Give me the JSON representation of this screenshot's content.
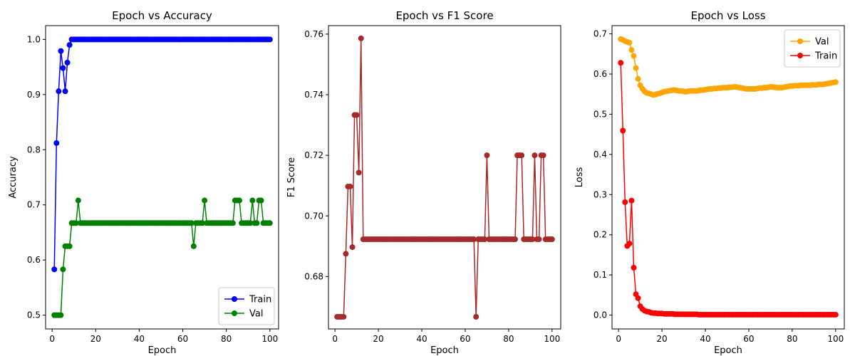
{
  "chart_data": [
    {
      "type": "line",
      "title": "Epoch vs Accuracy",
      "xlabel": "Epoch",
      "ylabel": "Accuracy",
      "xlim": [
        -3,
        104
      ],
      "ylim": [
        0.475,
        1.025
      ],
      "xticks": [
        0,
        20,
        40,
        60,
        80,
        100
      ],
      "yticks": [
        0.5,
        0.6,
        0.7,
        0.8,
        0.9,
        1.0
      ],
      "ytick_labels": [
        "0.5",
        "0.6",
        "0.7",
        "0.8",
        "0.9",
        "1.0"
      ],
      "legend_position": "lower-right",
      "series": [
        {
          "name": "Train",
          "color": "#0000ff",
          "values": [
            0.583,
            0.812,
            0.906,
            0.979,
            0.948,
            0.906,
            0.958,
            0.99,
            1.0,
            1.0,
            1.0,
            1.0,
            1.0,
            1.0,
            1.0,
            1.0,
            1.0,
            1.0,
            1.0,
            1.0,
            1.0,
            1.0,
            1.0,
            1.0,
            1.0,
            1.0,
            1.0,
            1.0,
            1.0,
            1.0,
            1.0,
            1.0,
            1.0,
            1.0,
            1.0,
            1.0,
            1.0,
            1.0,
            1.0,
            1.0,
            1.0,
            1.0,
            1.0,
            1.0,
            1.0,
            1.0,
            1.0,
            1.0,
            1.0,
            1.0,
            1.0,
            1.0,
            1.0,
            1.0,
            1.0,
            1.0,
            1.0,
            1.0,
            1.0,
            1.0,
            1.0,
            1.0,
            1.0,
            1.0,
            1.0,
            1.0,
            1.0,
            1.0,
            1.0,
            1.0,
            1.0,
            1.0,
            1.0,
            1.0,
            1.0,
            1.0,
            1.0,
            1.0,
            1.0,
            1.0,
            1.0,
            1.0,
            1.0,
            1.0,
            1.0,
            1.0,
            1.0,
            1.0,
            1.0,
            1.0,
            1.0,
            1.0,
            1.0,
            1.0,
            1.0,
            1.0,
            1.0,
            1.0,
            1.0,
            1.0
          ]
        },
        {
          "name": "Val",
          "color": "#008000",
          "values": [
            0.5,
            0.5,
            0.5,
            0.5,
            0.583,
            0.625,
            0.625,
            0.625,
            0.667,
            0.667,
            0.667,
            0.708,
            0.667,
            0.667,
            0.667,
            0.667,
            0.667,
            0.667,
            0.667,
            0.667,
            0.667,
            0.667,
            0.667,
            0.667,
            0.667,
            0.667,
            0.667,
            0.667,
            0.667,
            0.667,
            0.667,
            0.667,
            0.667,
            0.667,
            0.667,
            0.667,
            0.667,
            0.667,
            0.667,
            0.667,
            0.667,
            0.667,
            0.667,
            0.667,
            0.667,
            0.667,
            0.667,
            0.667,
            0.667,
            0.667,
            0.667,
            0.667,
            0.667,
            0.667,
            0.667,
            0.667,
            0.667,
            0.667,
            0.667,
            0.667,
            0.667,
            0.667,
            0.667,
            0.667,
            0.625,
            0.667,
            0.667,
            0.667,
            0.667,
            0.708,
            0.667,
            0.667,
            0.667,
            0.667,
            0.667,
            0.667,
            0.667,
            0.667,
            0.667,
            0.667,
            0.667,
            0.667,
            0.667,
            0.708,
            0.708,
            0.708,
            0.667,
            0.667,
            0.667,
            0.667,
            0.667,
            0.708,
            0.667,
            0.667,
            0.708,
            0.708,
            0.667,
            0.667,
            0.667,
            0.667
          ]
        }
      ]
    },
    {
      "type": "line",
      "title": "Epoch vs F1 Score",
      "xlabel": "Epoch",
      "ylabel": "F1 Score",
      "xlim": [
        -3,
        104
      ],
      "ylim": [
        0.6627,
        0.7628
      ],
      "xticks": [
        0,
        20,
        40,
        60,
        80,
        100
      ],
      "yticks": [
        0.68,
        0.7,
        0.72,
        0.74,
        0.76
      ],
      "ytick_labels": [
        "0.68",
        "0.70",
        "0.72",
        "0.74",
        "0.76"
      ],
      "series": [
        {
          "name": "",
          "color": "#a52a2a",
          "values": [
            0.6667,
            0.6667,
            0.6667,
            0.6667,
            0.6875,
            0.7097,
            0.7097,
            0.6897,
            0.7333,
            0.7333,
            0.7143,
            0.7586,
            0.6923,
            0.6923,
            0.6923,
            0.6923,
            0.6923,
            0.6923,
            0.6923,
            0.6923,
            0.6923,
            0.6923,
            0.6923,
            0.6923,
            0.6923,
            0.6923,
            0.6923,
            0.6923,
            0.6923,
            0.6923,
            0.6923,
            0.6923,
            0.6923,
            0.6923,
            0.6923,
            0.6923,
            0.6923,
            0.6923,
            0.6923,
            0.6923,
            0.6923,
            0.6923,
            0.6923,
            0.6923,
            0.6923,
            0.6923,
            0.6923,
            0.6923,
            0.6923,
            0.6923,
            0.6923,
            0.6923,
            0.6923,
            0.6923,
            0.6923,
            0.6923,
            0.6923,
            0.6923,
            0.6923,
            0.6923,
            0.6923,
            0.6923,
            0.6923,
            0.6923,
            0.6667,
            0.6923,
            0.6923,
            0.6923,
            0.6923,
            0.72,
            0.6923,
            0.6923,
            0.6923,
            0.6923,
            0.6923,
            0.6923,
            0.6923,
            0.6923,
            0.6923,
            0.6923,
            0.6923,
            0.6923,
            0.6923,
            0.72,
            0.72,
            0.72,
            0.6923,
            0.6923,
            0.6923,
            0.6923,
            0.6923,
            0.72,
            0.6923,
            0.6923,
            0.72,
            0.72,
            0.6923,
            0.6923,
            0.6923,
            0.6923
          ]
        }
      ]
    },
    {
      "type": "line",
      "title": "Epoch vs Loss",
      "xlabel": "Epoch",
      "ylabel": "Loss",
      "xlim": [
        -3,
        104
      ],
      "ylim": [
        -0.0345,
        0.7205
      ],
      "xticks": [
        0,
        20,
        40,
        60,
        80,
        100
      ],
      "yticks": [
        0.0,
        0.1,
        0.2,
        0.3,
        0.4,
        0.5,
        0.6,
        0.7
      ],
      "ytick_labels": [
        "0.0",
        "0.1",
        "0.2",
        "0.3",
        "0.4",
        "0.5",
        "0.6",
        "0.7"
      ],
      "legend_position": "upper-right",
      "series": [
        {
          "name": "Val",
          "color": "#ffa500",
          "values": [
            0.687,
            0.685,
            0.682,
            0.68,
            0.678,
            0.66,
            0.645,
            0.615,
            0.588,
            0.572,
            0.563,
            0.557,
            0.553,
            0.552,
            0.55,
            0.548,
            0.549,
            0.551,
            0.552,
            0.554,
            0.556,
            0.557,
            0.558,
            0.559,
            0.56,
            0.56,
            0.559,
            0.558,
            0.558,
            0.557,
            0.556,
            0.557,
            0.558,
            0.558,
            0.558,
            0.558,
            0.559,
            0.56,
            0.56,
            0.561,
            0.562,
            0.563,
            0.563,
            0.564,
            0.564,
            0.565,
            0.565,
            0.566,
            0.566,
            0.566,
            0.567,
            0.567,
            0.568,
            0.568,
            0.567,
            0.566,
            0.565,
            0.564,
            0.563,
            0.563,
            0.563,
            0.563,
            0.563,
            0.564,
            0.565,
            0.565,
            0.566,
            0.566,
            0.567,
            0.568,
            0.568,
            0.567,
            0.566,
            0.566,
            0.566,
            0.567,
            0.568,
            0.569,
            0.57,
            0.57,
            0.571,
            0.571,
            0.571,
            0.572,
            0.572,
            0.572,
            0.572,
            0.572,
            0.573,
            0.573,
            0.573,
            0.574,
            0.574,
            0.574,
            0.575,
            0.576,
            0.577,
            0.578,
            0.579,
            0.58
          ]
        },
        {
          "name": "Train",
          "color": "#ff0000",
          "values": [
            0.628,
            0.459,
            0.281,
            0.172,
            0.178,
            0.285,
            0.118,
            0.052,
            0.042,
            0.022,
            0.015,
            0.011,
            0.009,
            0.008,
            0.006,
            0.005,
            0.005,
            0.004,
            0.004,
            0.004,
            0.003,
            0.003,
            0.003,
            0.003,
            0.003,
            0.002,
            0.002,
            0.002,
            0.002,
            0.002,
            0.002,
            0.002,
            0.002,
            0.002,
            0.002,
            0.002,
            0.001,
            0.001,
            0.001,
            0.001,
            0.001,
            0.001,
            0.001,
            0.001,
            0.001,
            0.001,
            0.001,
            0.001,
            0.001,
            0.001,
            0.001,
            0.001,
            0.001,
            0.001,
            0.001,
            0.001,
            0.001,
            0.001,
            0.001,
            0.001,
            0.001,
            0.001,
            0.001,
            0.001,
            0.001,
            0.001,
            0.001,
            0.001,
            0.001,
            0.001,
            0.001,
            0.001,
            0.001,
            0.001,
            0.001,
            0.001,
            0.001,
            0.001,
            0.001,
            0.001,
            0.001,
            0.001,
            0.001,
            0.001,
            0.001,
            0.001,
            0.001,
            0.001,
            0.001,
            0.001,
            0.001,
            0.001,
            0.001,
            0.001,
            0.001,
            0.001,
            0.001,
            0.001,
            0.001,
            0.001
          ]
        }
      ]
    }
  ]
}
